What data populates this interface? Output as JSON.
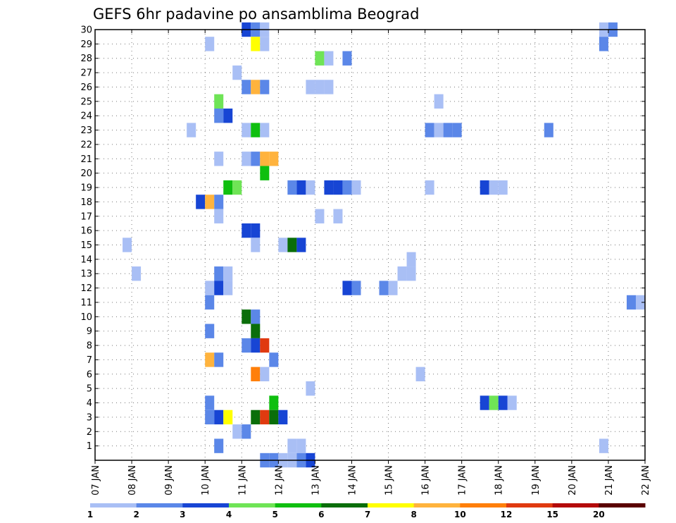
{
  "chart_data": {
    "type": "heatmap",
    "title": "GEFS 6hr padavine po ansamblima Beograd",
    "xlabel": "",
    "ylabel": "",
    "x_ticks": [
      "07 JAN",
      "08 JAN",
      "09 JAN",
      "10 JAN",
      "11 JAN",
      "12 JAN",
      "13 JAN",
      "14 JAN",
      "15 JAN",
      "16 JAN",
      "17 JAN",
      "18 JAN",
      "19 JAN",
      "20 JAN",
      "21 JAN",
      "22 JAN"
    ],
    "y_ticks": [
      "1",
      "2",
      "3",
      "4",
      "5",
      "6",
      "7",
      "8",
      "9",
      "10",
      "11",
      "12",
      "13",
      "14",
      "15",
      "16",
      "17",
      "18",
      "19",
      "20",
      "21",
      "22",
      "23",
      "24",
      "25",
      "26",
      "27",
      "28",
      "29",
      "30"
    ],
    "xlim_days": [
      0,
      15
    ],
    "ylim": [
      0,
      30
    ],
    "time_step_hours": 6,
    "grid": true,
    "colorbar": {
      "levels": [
        "1",
        "2",
        "3",
        "4",
        "5",
        "6",
        "7",
        "8",
        "10",
        "12",
        "15",
        "20"
      ],
      "colors": [
        "#a9bff5",
        "#5b87e8",
        "#1745d4",
        "#6fe456",
        "#0fbf0f",
        "#0a6e0a",
        "#ffff00",
        "#ffb33d",
        "#ff7f0a",
        "#e03a10",
        "#b40a0a",
        "#5a0000"
      ]
    },
    "cells": [
      {
        "member": 30,
        "day": 4.0,
        "level": 3
      },
      {
        "member": 30,
        "day": 4.25,
        "level": 2
      },
      {
        "member": 30,
        "day": 4.5,
        "level": 1
      },
      {
        "member": 30,
        "day": 13.75,
        "level": 1
      },
      {
        "member": 30,
        "day": 14.0,
        "level": 2
      },
      {
        "member": 29,
        "day": 3.0,
        "level": 1
      },
      {
        "member": 29,
        "day": 4.25,
        "level": 7
      },
      {
        "member": 29,
        "day": 4.5,
        "level": 1
      },
      {
        "member": 29,
        "day": 13.75,
        "level": 2
      },
      {
        "member": 28,
        "day": 6.0,
        "level": 4
      },
      {
        "member": 28,
        "day": 6.25,
        "level": 1
      },
      {
        "member": 28,
        "day": 6.75,
        "level": 2
      },
      {
        "member": 27,
        "day": 3.75,
        "level": 1
      },
      {
        "member": 26,
        "day": 4.0,
        "level": 2
      },
      {
        "member": 26,
        "day": 4.25,
        "level": 8
      },
      {
        "member": 26,
        "day": 4.5,
        "level": 2
      },
      {
        "member": 26,
        "day": 5.75,
        "level": 1
      },
      {
        "member": 26,
        "day": 6.0,
        "level": 1
      },
      {
        "member": 26,
        "day": 6.25,
        "level": 1
      },
      {
        "member": 25,
        "day": 3.25,
        "level": 4
      },
      {
        "member": 25,
        "day": 9.25,
        "level": 1
      },
      {
        "member": 24,
        "day": 3.25,
        "level": 2
      },
      {
        "member": 24,
        "day": 3.5,
        "level": 3
      },
      {
        "member": 23,
        "day": 2.5,
        "level": 1
      },
      {
        "member": 23,
        "day": 4.0,
        "level": 1
      },
      {
        "member": 23,
        "day": 4.25,
        "level": 5
      },
      {
        "member": 23,
        "day": 4.5,
        "level": 1
      },
      {
        "member": 23,
        "day": 9.0,
        "level": 2
      },
      {
        "member": 23,
        "day": 9.25,
        "level": 1
      },
      {
        "member": 23,
        "day": 9.5,
        "level": 2
      },
      {
        "member": 23,
        "day": 9.75,
        "level": 2
      },
      {
        "member": 23,
        "day": 12.25,
        "level": 2
      },
      {
        "member": 21,
        "day": 3.25,
        "level": 1
      },
      {
        "member": 21,
        "day": 4.0,
        "level": 1
      },
      {
        "member": 21,
        "day": 4.25,
        "level": 2
      },
      {
        "member": 21,
        "day": 4.5,
        "level": 8
      },
      {
        "member": 21,
        "day": 4.75,
        "level": 8
      },
      {
        "member": 20,
        "day": 4.5,
        "level": 5
      },
      {
        "member": 19,
        "day": 3.5,
        "level": 5
      },
      {
        "member": 19,
        "day": 3.75,
        "level": 4
      },
      {
        "member": 19,
        "day": 5.25,
        "level": 2
      },
      {
        "member": 19,
        "day": 5.5,
        "level": 3
      },
      {
        "member": 19,
        "day": 5.75,
        "level": 1
      },
      {
        "member": 19,
        "day": 6.25,
        "level": 3
      },
      {
        "member": 19,
        "day": 6.5,
        "level": 3
      },
      {
        "member": 19,
        "day": 6.75,
        "level": 2
      },
      {
        "member": 19,
        "day": 7.0,
        "level": 1
      },
      {
        "member": 19,
        "day": 9.0,
        "level": 1
      },
      {
        "member": 19,
        "day": 10.5,
        "level": 3
      },
      {
        "member": 19,
        "day": 10.75,
        "level": 1
      },
      {
        "member": 19,
        "day": 11.0,
        "level": 1
      },
      {
        "member": 18,
        "day": 2.75,
        "level": 3
      },
      {
        "member": 18,
        "day": 3.0,
        "level": 8
      },
      {
        "member": 18,
        "day": 3.25,
        "level": 2
      },
      {
        "member": 17,
        "day": 3.25,
        "level": 1
      },
      {
        "member": 17,
        "day": 6.0,
        "level": 1
      },
      {
        "member": 17,
        "day": 6.5,
        "level": 1
      },
      {
        "member": 16,
        "day": 4.0,
        "level": 3
      },
      {
        "member": 16,
        "day": 4.25,
        "level": 3
      },
      {
        "member": 15,
        "day": 0.75,
        "level": 1
      },
      {
        "member": 15,
        "day": 4.25,
        "level": 1
      },
      {
        "member": 15,
        "day": 5.0,
        "level": 1
      },
      {
        "member": 15,
        "day": 5.25,
        "level": 6
      },
      {
        "member": 15,
        "day": 5.5,
        "level": 3
      },
      {
        "member": 14,
        "day": 8.5,
        "level": 1
      },
      {
        "member": 13,
        "day": 1.0,
        "level": 1
      },
      {
        "member": 13,
        "day": 3.25,
        "level": 2
      },
      {
        "member": 13,
        "day": 3.5,
        "level": 1
      },
      {
        "member": 13,
        "day": 8.25,
        "level": 1
      },
      {
        "member": 13,
        "day": 8.5,
        "level": 1
      },
      {
        "member": 12,
        "day": 3.0,
        "level": 1
      },
      {
        "member": 12,
        "day": 3.25,
        "level": 3
      },
      {
        "member": 12,
        "day": 3.5,
        "level": 1
      },
      {
        "member": 12,
        "day": 6.75,
        "level": 3
      },
      {
        "member": 12,
        "day": 7.0,
        "level": 2
      },
      {
        "member": 12,
        "day": 7.75,
        "level": 2
      },
      {
        "member": 12,
        "day": 8.0,
        "level": 1
      },
      {
        "member": 11,
        "day": 3.0,
        "level": 2
      },
      {
        "member": 11,
        "day": 14.5,
        "level": 2
      },
      {
        "member": 11,
        "day": 14.75,
        "level": 1
      },
      {
        "member": 10,
        "day": 4.0,
        "level": 6
      },
      {
        "member": 10,
        "day": 4.25,
        "level": 2
      },
      {
        "member": 9,
        "day": 3.0,
        "level": 2
      },
      {
        "member": 9,
        "day": 4.25,
        "level": 6
      },
      {
        "member": 8,
        "day": 4.0,
        "level": 2
      },
      {
        "member": 8,
        "day": 4.25,
        "level": 3
      },
      {
        "member": 8,
        "day": 4.5,
        "level": 10
      },
      {
        "member": 7,
        "day": 3.0,
        "level": 8
      },
      {
        "member": 7,
        "day": 3.25,
        "level": 2
      },
      {
        "member": 7,
        "day": 4.75,
        "level": 2
      },
      {
        "member": 6,
        "day": 4.25,
        "level": 9
      },
      {
        "member": 6,
        "day": 4.5,
        "level": 1
      },
      {
        "member": 6,
        "day": 8.75,
        "level": 1
      },
      {
        "member": 5,
        "day": 5.75,
        "level": 1
      },
      {
        "member": 4,
        "day": 3.0,
        "level": 2
      },
      {
        "member": 4,
        "day": 4.75,
        "level": 5
      },
      {
        "member": 4,
        "day": 10.5,
        "level": 3
      },
      {
        "member": 4,
        "day": 10.75,
        "level": 4
      },
      {
        "member": 4,
        "day": 11.0,
        "level": 3
      },
      {
        "member": 4,
        "day": 11.25,
        "level": 1
      },
      {
        "member": 3,
        "day": 3.0,
        "level": 2
      },
      {
        "member": 3,
        "day": 3.25,
        "level": 3
      },
      {
        "member": 3,
        "day": 3.5,
        "level": 7
      },
      {
        "member": 3,
        "day": 4.25,
        "level": 6
      },
      {
        "member": 3,
        "day": 4.5,
        "level": 10
      },
      {
        "member": 3,
        "day": 4.75,
        "level": 6
      },
      {
        "member": 3,
        "day": 5.0,
        "level": 3
      },
      {
        "member": 2,
        "day": 3.75,
        "level": 1
      },
      {
        "member": 2,
        "day": 4.0,
        "level": 2
      },
      {
        "member": 1,
        "day": 3.25,
        "level": 2
      },
      {
        "member": 1,
        "day": 5.25,
        "level": 1
      },
      {
        "member": 1,
        "day": 5.5,
        "level": 1
      },
      {
        "member": 1,
        "day": 13.75,
        "level": 1
      },
      {
        "member": 0,
        "day": 4.5,
        "level": 2
      },
      {
        "member": 0,
        "day": 4.75,
        "level": 2
      },
      {
        "member": 0,
        "day": 5.0,
        "level": 1
      },
      {
        "member": 0,
        "day": 5.25,
        "level": 1
      },
      {
        "member": 0,
        "day": 5.5,
        "level": 2
      },
      {
        "member": 0,
        "day": 5.75,
        "level": 3
      }
    ]
  }
}
